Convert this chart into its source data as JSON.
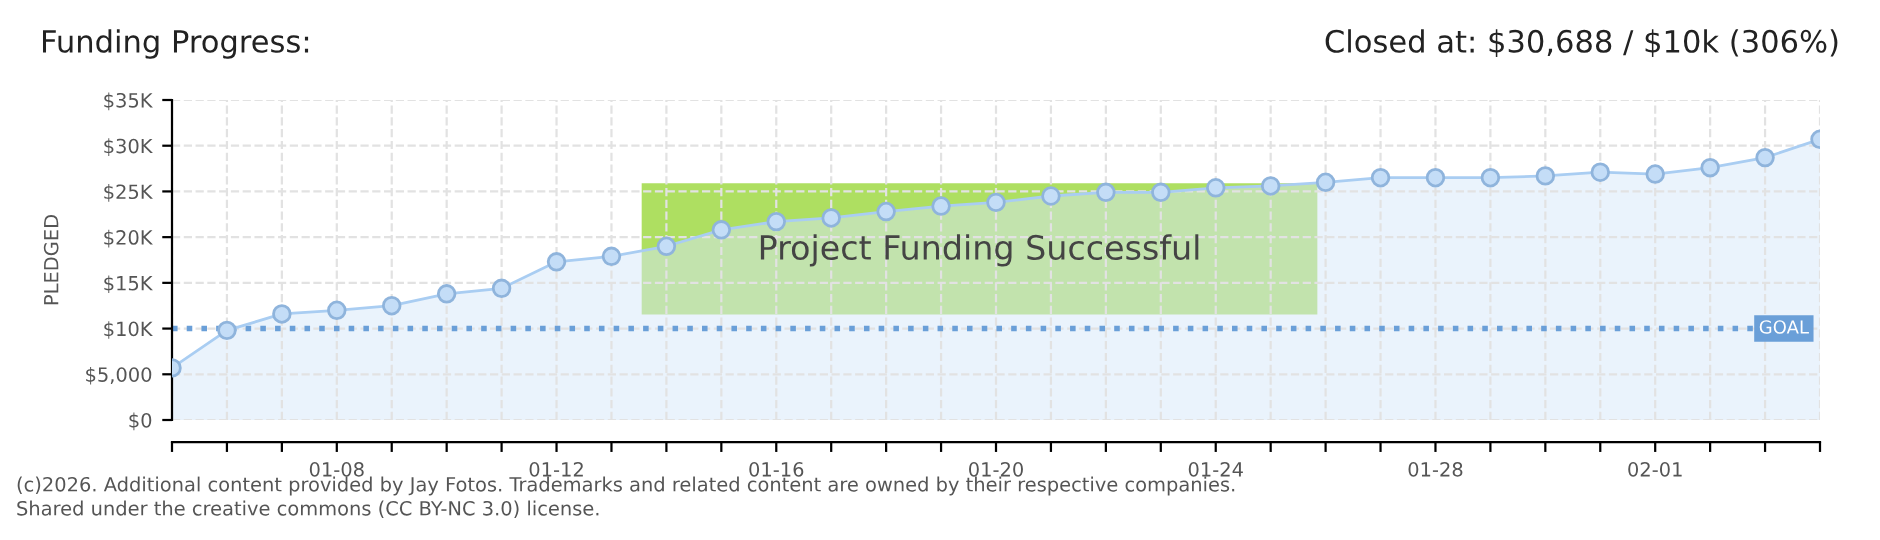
{
  "chart_data": {
    "type": "area",
    "title": "Funding Progress:",
    "subtitle": "Closed at: $30,688 / $10k (306%)",
    "ylabel": "PLEDGED",
    "categories": [
      null,
      null,
      null,
      "01-08",
      null,
      null,
      null,
      "01-12",
      null,
      null,
      null,
      "01-16",
      null,
      null,
      null,
      "01-20",
      null,
      null,
      null,
      "01-24",
      null,
      null,
      null,
      "01-28",
      null,
      null,
      null,
      "02-01",
      null,
      null,
      null
    ],
    "series": [
      {
        "color": "#a9cdf2",
        "values": [
          5700,
          9800,
          11600,
          12000,
          12500,
          13800,
          14400,
          17300,
          17900,
          19000,
          20800,
          21700,
          22100,
          22800,
          23400,
          23800,
          24500,
          24900,
          24900,
          25400,
          25600,
          26000,
          26500,
          26500,
          26500,
          26700,
          27100,
          26900,
          27600,
          28700,
          30700
        ]
      }
    ],
    "marker": "circle",
    "line_style": "solid",
    "grid": true,
    "ylim": [
      0,
      35000
    ],
    "yticks": [
      {
        "value": 0,
        "label": "$0"
      },
      {
        "value": 5000,
        "label": "$5,000"
      },
      {
        "value": 10000,
        "label": "$10K"
      },
      {
        "value": 15000,
        "label": "$15K"
      },
      {
        "value": 20000,
        "label": "$20K"
      },
      {
        "value": 25000,
        "label": "$25K"
      },
      {
        "value": 30000,
        "label": "$30K"
      },
      {
        "value": 35000,
        "label": "$35K"
      }
    ],
    "ref_lines": [
      {
        "axis": "y",
        "value": 10000,
        "label": "GOAL",
        "color": "#6a9fd8",
        "line_style": "dotted"
      }
    ],
    "annotations": [
      "Project Funding Successful",
      "(c)2026. Additional content provided by Jay Fotos. Trademarks and related content are owned by their respective companies.",
      "Shared under the creative commons (CC BY-NC 3.0) license."
    ]
  }
}
